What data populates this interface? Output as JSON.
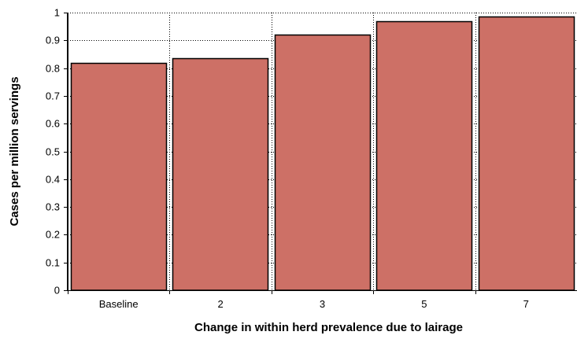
{
  "chart_data": {
    "type": "bar",
    "title": "",
    "xlabel": "Change in within herd prevalence due to lairage",
    "ylabel": "Cases per million servings",
    "categories": [
      "Baseline",
      "2",
      "3",
      "5",
      "7"
    ],
    "values": [
      0.82,
      0.835,
      0.92,
      0.97,
      0.985
    ],
    "ylim": [
      0,
      1
    ],
    "yticks": [
      0,
      0.1,
      0.2,
      0.3,
      0.4,
      0.5,
      0.6,
      0.7,
      0.8,
      0.9,
      1
    ],
    "ytick_labels": [
      "0",
      "0.1",
      "0.2",
      "0.3",
      "0.4",
      "0.5",
      "0.6",
      "0.7",
      "0.8",
      "0.9",
      "1"
    ],
    "grid": true,
    "legend": "none",
    "colors": {
      "bar_fill": "#cd7066",
      "bar_stroke": "#000000",
      "grid": "#000000"
    }
  }
}
